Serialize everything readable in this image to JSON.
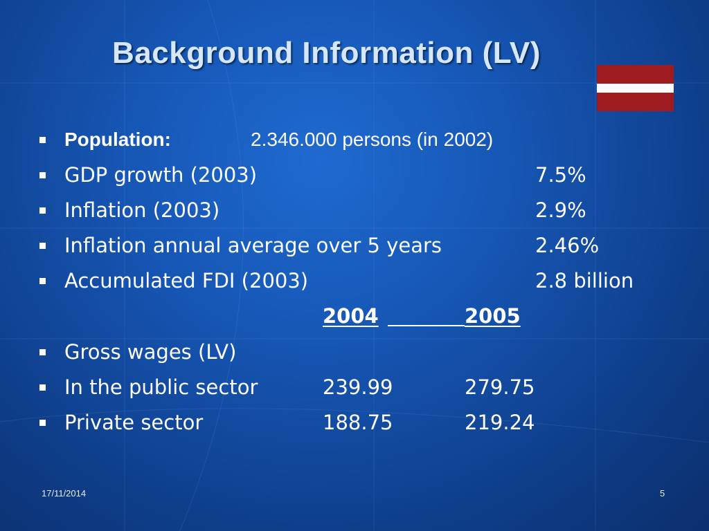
{
  "slide": {
    "title": "Background Information (LV)",
    "flag_colors": {
      "red": "#9e1b20",
      "white": "#ffffff"
    },
    "population": {
      "label": "Population:",
      "value": "2.346.000 persons (in 2002)"
    },
    "facts": [
      {
        "label": "GDP growth (2003)",
        "value": "7.5%"
      },
      {
        "label": "Inflation (2003)",
        "value": "2.9%"
      },
      {
        "label": "Inflation annual average over 5 years",
        "value": "2.46%"
      },
      {
        "label": "Accumulated FDI (2003)",
        "value": "2.8 billion"
      }
    ],
    "wages": {
      "years": [
        "2004",
        "2005"
      ],
      "heading": "Gross wages (LV)",
      "rows": [
        {
          "label": "In the public sector",
          "values": [
            "239.99",
            "279.75"
          ]
        },
        {
          "label": "Private sector",
          "values": [
            "188.75",
            "219.24"
          ]
        }
      ]
    }
  },
  "footer": {
    "date": "17/11/2014",
    "page_number": "5"
  },
  "theme": {
    "background": "#1656b4",
    "title_color": "#d6e6fb",
    "text_color": "#ffffff"
  }
}
